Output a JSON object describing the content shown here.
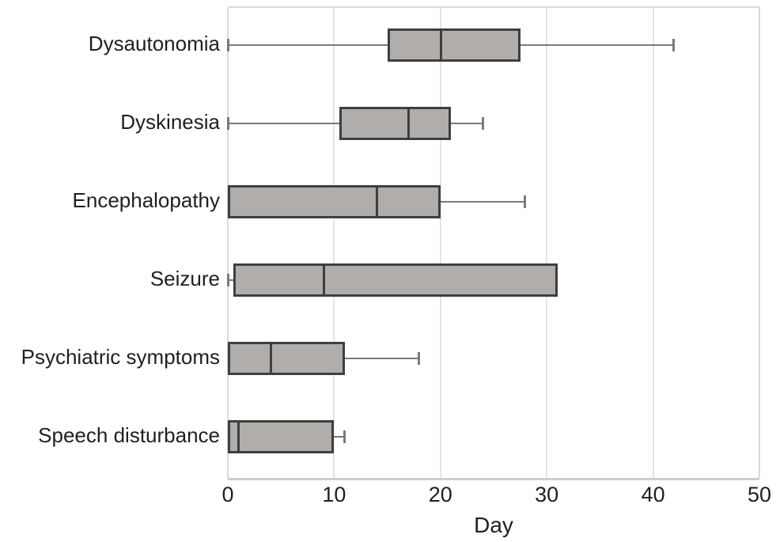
{
  "chart_data": {
    "type": "boxplot",
    "orientation": "horizontal",
    "title": "",
    "xlabel": "Day",
    "ylabel": "",
    "xlim": [
      0,
      50
    ],
    "xticks": [
      0,
      10,
      20,
      30,
      40,
      50
    ],
    "grid": true,
    "legend": "none",
    "categories": [
      "Dysautonomia",
      "Dyskinesia",
      "Encephalopathy",
      "Seizure",
      "Psychiatric symptoms",
      "Speech disturbance"
    ],
    "boxes": [
      {
        "category": "Dysautonomia",
        "min": 0,
        "q1": 15,
        "median": 20,
        "q3": 27.5,
        "max": 42
      },
      {
        "category": "Dyskinesia",
        "min": 0,
        "q1": 10.5,
        "median": 17,
        "q3": 21,
        "max": 24
      },
      {
        "category": "Encephalopathy",
        "min": 0,
        "q1": 0,
        "median": 14,
        "q3": 20,
        "max": 28
      },
      {
        "category": "Seizure",
        "min": 0,
        "q1": 0.5,
        "median": 9,
        "q3": 31,
        "max": 31
      },
      {
        "category": "Psychiatric symptoms",
        "min": 0,
        "q1": 0,
        "median": 4,
        "q3": 11,
        "max": 18
      },
      {
        "category": "Speech disturbance",
        "min": 0,
        "q1": 0,
        "median": 1,
        "q3": 10,
        "max": 11
      }
    ],
    "colors": {
      "box_fill": "#b0adab",
      "box_border": "#3f3f3f",
      "median": "#3f3f3f",
      "whisker": "#7a7a7a",
      "gridline": "#e4e4e4",
      "plot_border": "#d9d9d9",
      "axis_line": "#d0cdcd",
      "text": "#1f1f1f",
      "background": "#ffffff"
    }
  }
}
